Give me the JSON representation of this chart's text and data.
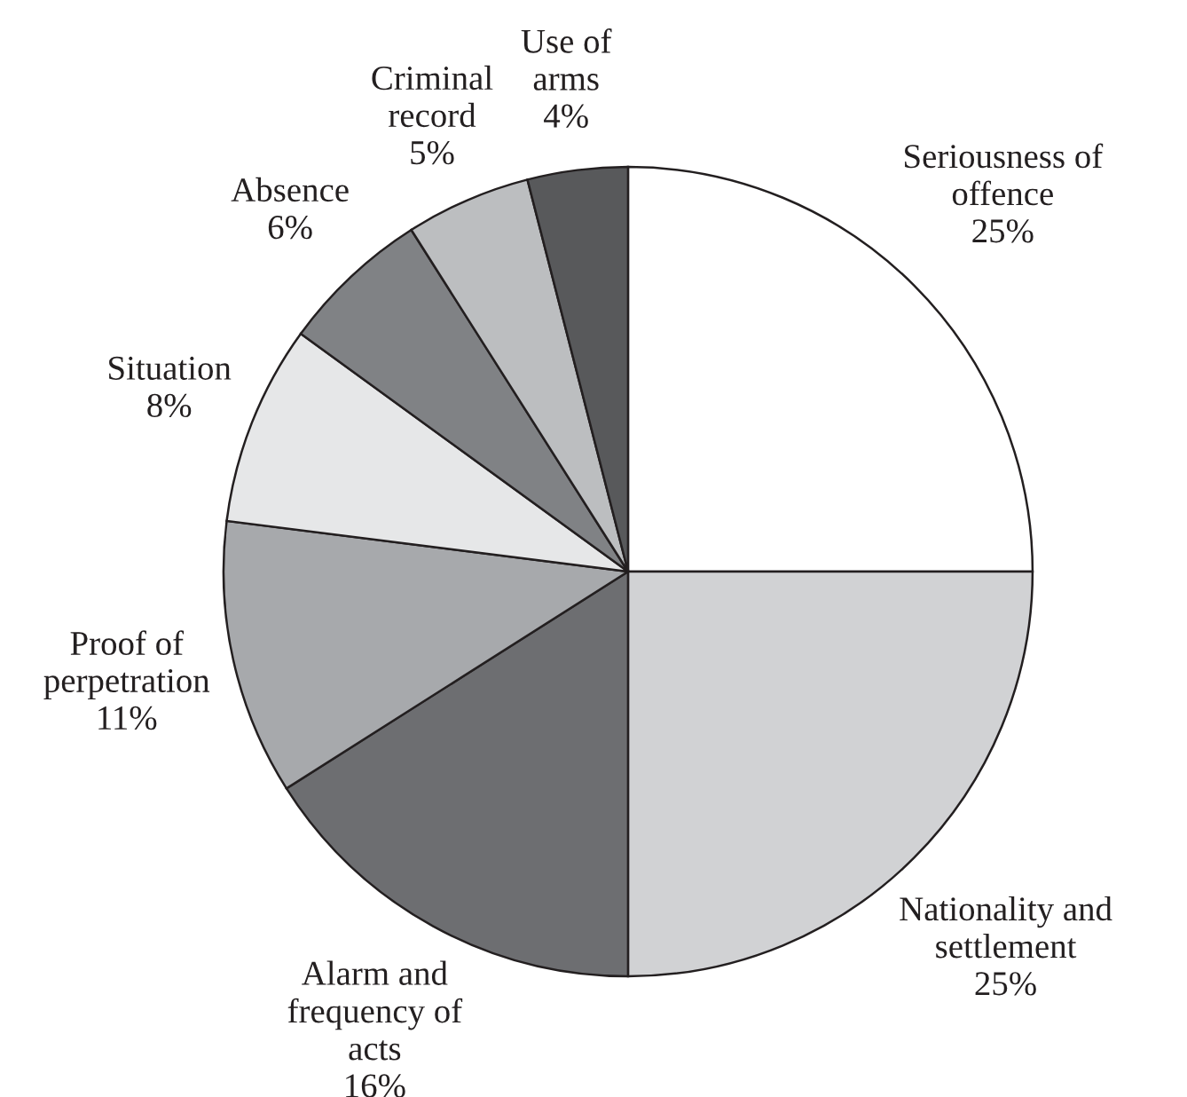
{
  "chart_data": {
    "type": "pie",
    "categories": [
      "Seriousness of\noffence",
      "Nationality and\nsettlement",
      "Alarm and\nfrequency of\nacts",
      "Proof of\nperpetration",
      "Situation",
      "Absence",
      "Criminal\nrecord",
      "Use of\narms"
    ],
    "values": [
      25,
      25,
      16,
      11,
      8,
      6,
      5,
      4
    ],
    "value_labels": [
      "25%",
      "25%",
      "16%",
      "11%",
      "8%",
      "6%",
      "5%",
      "4%"
    ],
    "colors": [
      "#ffffff",
      "#d1d2d4",
      "#6d6e71",
      "#a7a9ac",
      "#e6e7e8",
      "#808285",
      "#bcbec0",
      "#58595b"
    ],
    "legend": false
  }
}
